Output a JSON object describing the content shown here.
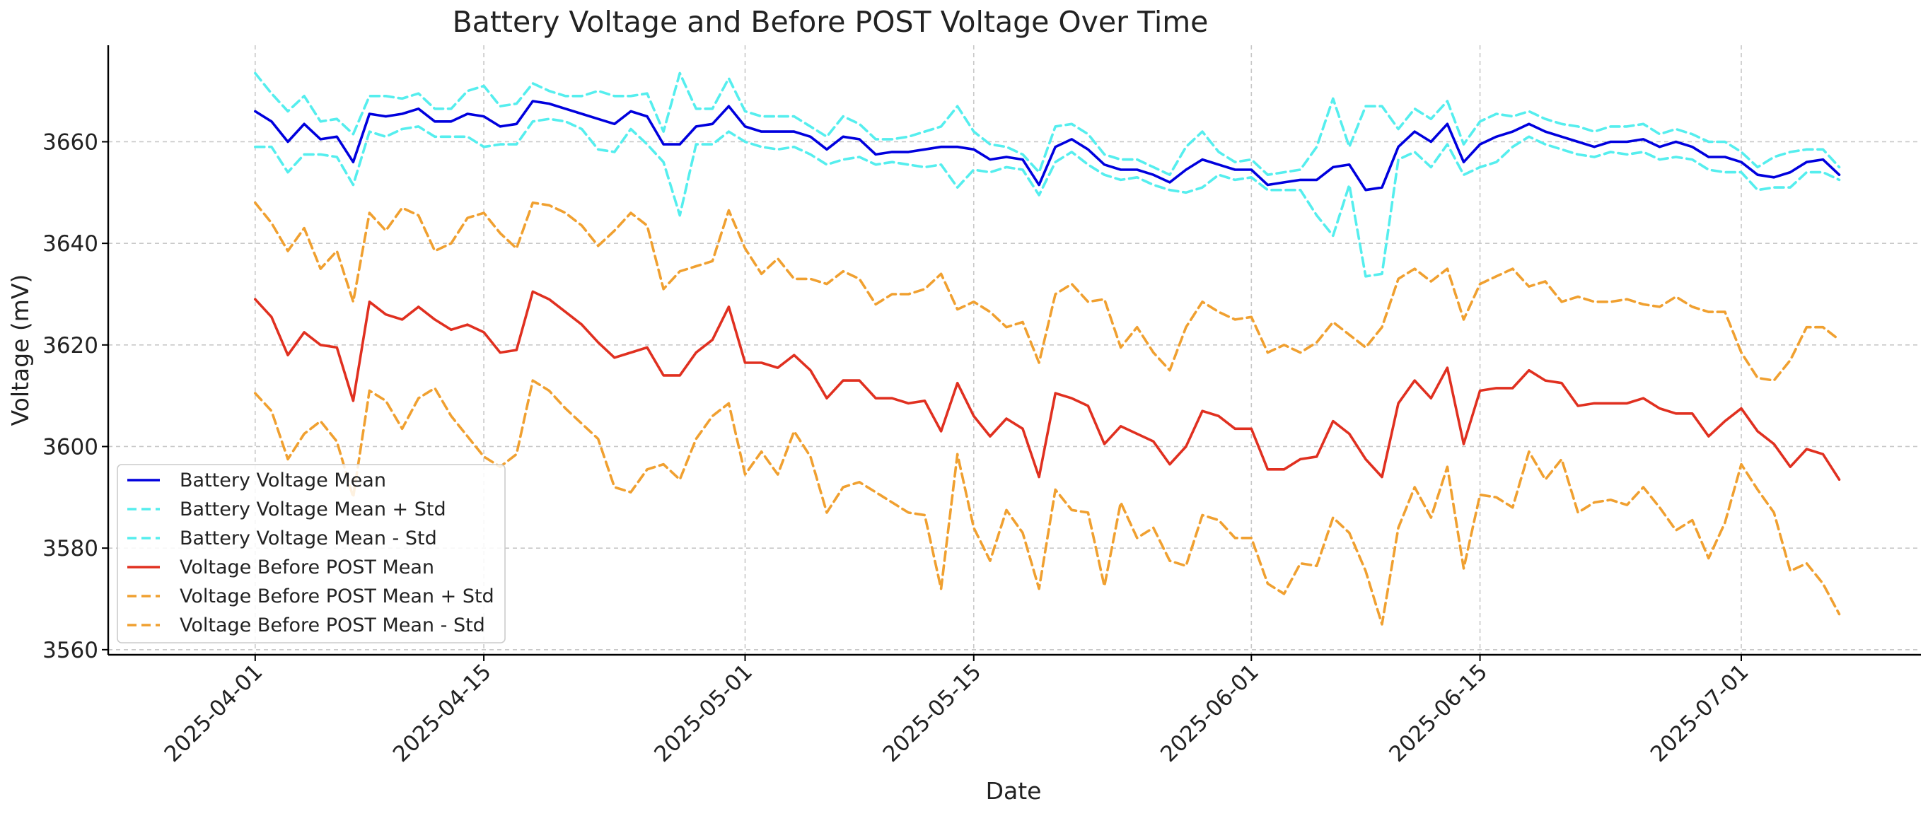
{
  "chart_data": {
    "type": "line",
    "title": "Battery Voltage and Before POST Voltage Over Time",
    "xlabel": "Date",
    "ylabel": "Voltage (mV)",
    "x_start": "2025-04-01",
    "x_end": "2025-07-06",
    "xlim": [
      "2025-03-23",
      "2025-07-12"
    ],
    "ylim": [
      3559,
      3679
    ],
    "x_ticks": [
      "2025-04-01",
      "2025-04-15",
      "2025-05-01",
      "2025-05-15",
      "2025-06-01",
      "2025-06-15",
      "2025-07-01"
    ],
    "y_ticks": [
      3560,
      3580,
      3600,
      3620,
      3640,
      3660
    ],
    "grid": true,
    "legend_position": "lower-left",
    "series": [
      {
        "name": "Battery Voltage Mean",
        "color": "#0000dd",
        "dash": "solid",
        "values": [
          3666,
          3664,
          3660,
          3663.5,
          3660.5,
          3661,
          3656,
          3665.5,
          3665,
          3665.5,
          3666.5,
          3664,
          3664,
          3665.5,
          3665,
          3663,
          3663.5,
          3668,
          3667.5,
          3666.5,
          3665.5,
          3664.5,
          3663.5,
          3666,
          3665,
          3659.5,
          3659.5,
          3663,
          3663.5,
          3667,
          3663,
          3662,
          3662,
          3662,
          3661,
          3658.5,
          3661,
          3660.5,
          3657.5,
          3658,
          3658,
          3658.5,
          3659,
          3659,
          3658.5,
          3656.5,
          3657,
          3656.5,
          3651.5,
          3659,
          3660.5,
          3658.5,
          3655.5,
          3654.5,
          3654.5,
          3653.5,
          3652,
          3654.5,
          3656.5,
          3655.5,
          3654.5,
          3654.5,
          3651.5,
          3652,
          3652.5,
          3652.5,
          3655,
          3655.5,
          3650.5,
          3651,
          3659,
          3662,
          3660,
          3663.5,
          3656,
          3659.5,
          3661,
          3662,
          3663.5,
          3662,
          3661,
          3660,
          3659,
          3660,
          3660,
          3660.5,
          3659,
          3660,
          3659,
          3657,
          3657,
          3656,
          3653.5,
          3653,
          3654,
          3656,
          3656.5,
          3653.5
        ]
      },
      {
        "name": "Battery Voltage Mean + Std",
        "color": "#55eeee",
        "dash": "dashed",
        "values": [
          3673.5,
          3669.5,
          3666,
          3669,
          3664,
          3664.5,
          3661.5,
          3669,
          3669,
          3668.5,
          3669.5,
          3666.5,
          3666.5,
          3670,
          3671,
          3667,
          3667.5,
          3671.5,
          3670,
          3669,
          3669,
          3670,
          3669,
          3669,
          3669.5,
          3662,
          3673.5,
          3666.5,
          3666.5,
          3672.5,
          3666,
          3665,
          3665,
          3665,
          3663,
          3661,
          3665,
          3663.5,
          3660.5,
          3660.5,
          3661,
          3662,
          3663,
          3667,
          3662,
          3659.5,
          3659,
          3657.5,
          3654,
          3663,
          3663.5,
          3661.5,
          3657.5,
          3656.5,
          3656.5,
          3655,
          3653.5,
          3659,
          3662,
          3658,
          3656,
          3656.5,
          3653.5,
          3654,
          3654.5,
          3659,
          3668.5,
          3659,
          3667,
          3667,
          3662.5,
          3666.5,
          3664.5,
          3668,
          3659.5,
          3664,
          3665.5,
          3665,
          3666,
          3664.5,
          3663.5,
          3663,
          3662,
          3663,
          3663,
          3663.5,
          3661.5,
          3662.5,
          3661.5,
          3660,
          3660,
          3658,
          3655,
          3657,
          3658,
          3658.5,
          3658.5,
          3655
        ]
      },
      {
        "name": "Battery Voltage Mean - Std",
        "color": "#55eeee",
        "dash": "dashed",
        "values": [
          3659,
          3659,
          3654,
          3657.5,
          3657.5,
          3657,
          3651.5,
          3662,
          3661,
          3662.5,
          3663,
          3661,
          3661,
          3661,
          3659,
          3659.5,
          3659.5,
          3664,
          3664.5,
          3664,
          3662.5,
          3658.5,
          3658,
          3662.5,
          3659.5,
          3656,
          3645.5,
          3659.5,
          3659.5,
          3662,
          3660,
          3659,
          3658.5,
          3659,
          3657.5,
          3655.5,
          3656.5,
          3657,
          3655.5,
          3656,
          3655.5,
          3655,
          3655.5,
          3651,
          3654.5,
          3654,
          3655,
          3654.5,
          3649.5,
          3656,
          3658,
          3655.5,
          3653.5,
          3652.5,
          3653,
          3651.5,
          3650.5,
          3650,
          3651,
          3653.5,
          3652.5,
          3653,
          3650.5,
          3650.5,
          3650.5,
          3645.5,
          3641.5,
          3651.5,
          3633.5,
          3634,
          3656.5,
          3658,
          3655,
          3659.5,
          3653.5,
          3655,
          3656,
          3659,
          3661,
          3659.5,
          3658.5,
          3657.5,
          3657,
          3658,
          3657.5,
          3658,
          3656.5,
          3657,
          3656.5,
          3654.5,
          3654,
          3654,
          3650.5,
          3651,
          3651,
          3654,
          3654,
          3652.5
        ]
      },
      {
        "name": "Voltage Before POST Mean",
        "color": "#e03020",
        "dash": "solid",
        "values": [
          3629,
          3625.5,
          3618,
          3622.5,
          3620,
          3619.5,
          3609,
          3628.5,
          3626,
          3625,
          3627.5,
          3625,
          3623,
          3624,
          3622.5,
          3618.5,
          3619,
          3630.5,
          3629,
          3626.5,
          3624,
          3620.5,
          3617.5,
          3618.5,
          3619.5,
          3614,
          3614,
          3618.5,
          3621,
          3627.5,
          3616.5,
          3616.5,
          3615.5,
          3618,
          3615,
          3609.5,
          3613,
          3613,
          3609.5,
          3609.5,
          3608.5,
          3609,
          3603,
          3612.5,
          3606,
          3602,
          3605.5,
          3603.5,
          3594,
          3610.5,
          3609.5,
          3608,
          3600.5,
          3604,
          3602.5,
          3601,
          3596.5,
          3600,
          3607,
          3606,
          3603.5,
          3603.5,
          3595.5,
          3595.5,
          3597.5,
          3598,
          3605,
          3602.5,
          3597.5,
          3594,
          3608.5,
          3613,
          3609.5,
          3615.5,
          3600.5,
          3611,
          3611.5,
          3611.5,
          3615,
          3613,
          3612.5,
          3608,
          3608.5,
          3608.5,
          3608.5,
          3609.5,
          3607.5,
          3606.5,
          3606.5,
          3602,
          3605,
          3607.5,
          3603,
          3600.5,
          3596,
          3599.5,
          3598.5,
          3593.5
        ]
      },
      {
        "name": "Voltage Before POST Mean + Std",
        "color": "#f0a030",
        "dash": "dashed",
        "values": [
          3648,
          3644,
          3638.5,
          3643,
          3635,
          3638.5,
          3628.5,
          3646,
          3642.5,
          3647,
          3645.5,
          3638.5,
          3640,
          3645,
          3646,
          3642,
          3639,
          3648,
          3647.5,
          3646,
          3643.5,
          3639.5,
          3642.5,
          3646,
          3643.5,
          3631,
          3634.5,
          3635.5,
          3636.5,
          3646.5,
          3639,
          3634,
          3637,
          3633,
          3633,
          3632,
          3634.5,
          3633,
          3628,
          3630,
          3630,
          3631,
          3634,
          3627,
          3628.5,
          3626.5,
          3623.5,
          3624.5,
          3616.5,
          3630,
          3632,
          3628.5,
          3629,
          3619.5,
          3623.5,
          3618.5,
          3615,
          3623.5,
          3628.5,
          3626.5,
          3625,
          3625.5,
          3618.5,
          3620,
          3618.5,
          3620.5,
          3624.5,
          3622,
          3619.5,
          3623.5,
          3633,
          3635,
          3632.5,
          3635,
          3625,
          3632,
          3633.5,
          3635,
          3631.5,
          3632.5,
          3628.5,
          3629.5,
          3628.5,
          3628.5,
          3629,
          3628,
          3627.5,
          3629.5,
          3627.5,
          3626.5,
          3626.5,
          3618.5,
          3613.5,
          3613,
          3617,
          3623.5,
          3623.5,
          3621
        ]
      },
      {
        "name": "Voltage Before POST Mean - Std",
        "color": "#f0a030",
        "dash": "dashed",
        "values": [
          3610.5,
          3607,
          3597.5,
          3602.5,
          3605,
          3601,
          3590,
          3611,
          3609,
          3603.5,
          3609.5,
          3611.5,
          3606,
          3602,
          3598,
          3596,
          3598.5,
          3613,
          3611,
          3607.5,
          3604.5,
          3601.5,
          3592,
          3591,
          3595.5,
          3596.5,
          3593.5,
          3601.5,
          3606,
          3608.5,
          3594.5,
          3599,
          3594.5,
          3603,
          3598,
          3587,
          3592,
          3593,
          3591,
          3589,
          3587,
          3586.5,
          3572,
          3598.5,
          3584,
          3577.5,
          3587.5,
          3583,
          3572,
          3591.5,
          3587.5,
          3587,
          3572.5,
          3589,
          3582,
          3584,
          3577.5,
          3576.5,
          3586.5,
          3585.5,
          3582,
          3582,
          3573,
          3571,
          3577,
          3576.5,
          3586,
          3583,
          3575.5,
          3565,
          3584,
          3592,
          3586,
          3596,
          3576,
          3590.5,
          3590,
          3588,
          3599,
          3593.5,
          3597.5,
          3587,
          3589,
          3589.5,
          3588.5,
          3592,
          3588,
          3583.5,
          3585.5,
          3578,
          3585,
          3596.5,
          3591.5,
          3587,
          3575.5,
          3577,
          3573,
          3567
        ]
      }
    ]
  }
}
